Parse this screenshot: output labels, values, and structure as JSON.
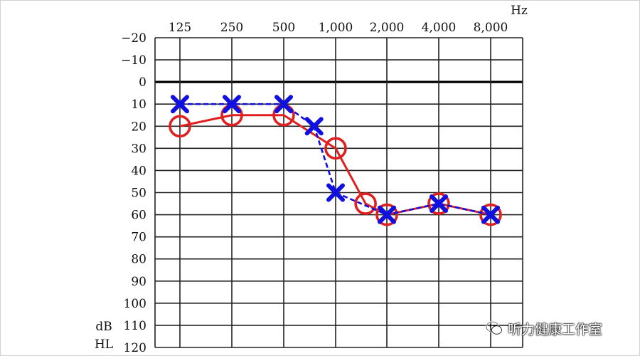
{
  "chart_data": {
    "type": "line",
    "x_unit": "Hz",
    "y_unit_line1": "dB",
    "y_unit_line2": "HL",
    "categories": [
      "125",
      "250",
      "500",
      "1,000",
      "2,000",
      "4,000",
      "8,000"
    ],
    "y_ticks": [
      "−20",
      "−10",
      "0",
      "10",
      "20",
      "30",
      "40",
      "50",
      "60",
      "70",
      "80",
      "90",
      "100",
      "110",
      "120"
    ],
    "ylim": [
      -20,
      120
    ],
    "y_inverted": true,
    "grid": true,
    "series": [
      {
        "marker": "circle",
        "color": "#e02020",
        "line_style": "solid",
        "points": [
          {
            "x": 125,
            "y": 20
          },
          {
            "x": 250,
            "y": 15
          },
          {
            "x": 500,
            "y": 15
          },
          {
            "x": 1000,
            "y": 30
          },
          {
            "x": 1500,
            "y": 55
          },
          {
            "x": 2000,
            "y": 60
          },
          {
            "x": 4000,
            "y": 55
          },
          {
            "x": 8000,
            "y": 60
          }
        ]
      },
      {
        "marker": "cross",
        "color": "#1010e0",
        "line_style": "dashed",
        "points": [
          {
            "x": 125,
            "y": 10
          },
          {
            "x": 250,
            "y": 10
          },
          {
            "x": 500,
            "y": 10
          },
          {
            "x": 750,
            "y": 20
          },
          {
            "x": 1000,
            "y": 50
          },
          {
            "x": 2000,
            "y": 60
          },
          {
            "x": 4000,
            "y": 55
          },
          {
            "x": 8000,
            "y": 60
          }
        ]
      }
    ]
  },
  "watermark": {
    "text": "听力健康工作室",
    "icon": "wechat-icon"
  }
}
